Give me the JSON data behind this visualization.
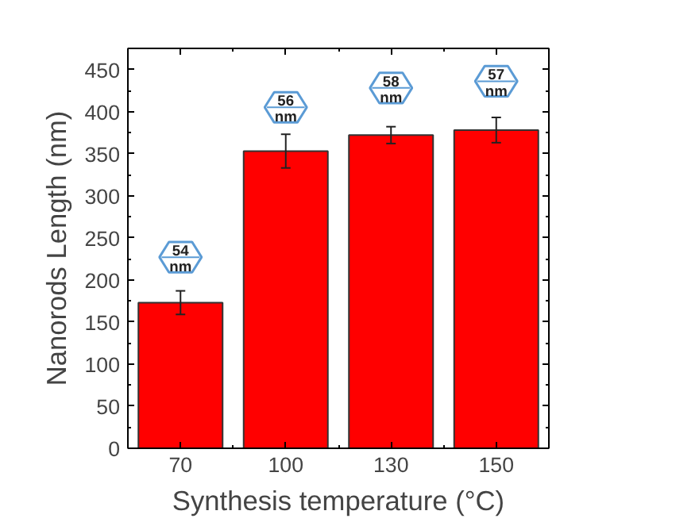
{
  "chart_data": {
    "type": "bar",
    "xlabel": "Synthesis temperature (°C)",
    "ylabel": "Nanorods Length (nm)",
    "categories": [
      "70",
      "100",
      "130",
      "150"
    ],
    "values": [
      173,
      353,
      372,
      378
    ],
    "errors": [
      14,
      20,
      10,
      15
    ],
    "color": "#ff0000",
    "ylim": [
      0,
      475
    ],
    "yticks": [
      0,
      50,
      100,
      150,
      200,
      250,
      300,
      350,
      400,
      450
    ],
    "annotations": [
      {
        "text": "54 nm",
        "x": "70",
        "y": 227
      },
      {
        "text": "56 nm",
        "x": "100",
        "y": 405
      },
      {
        "text": "58 nm",
        "x": "130",
        "y": 428
      },
      {
        "text": "57 nm",
        "x": "150",
        "y": 436
      }
    ]
  }
}
